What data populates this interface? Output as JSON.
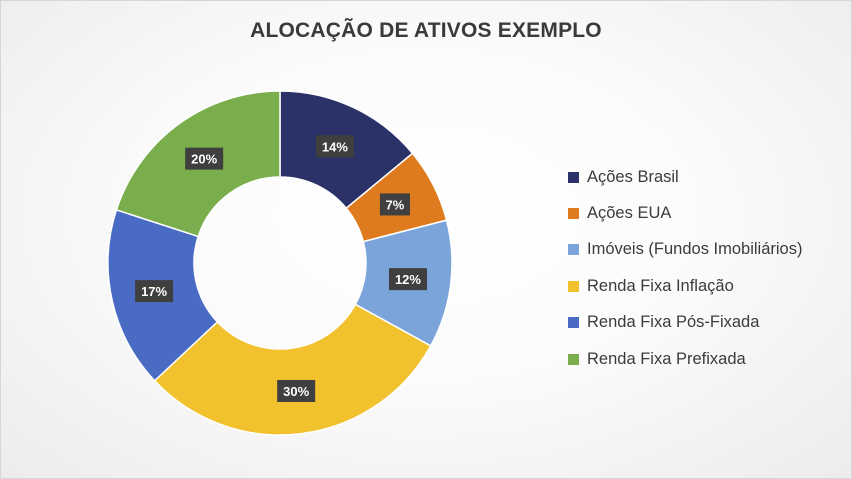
{
  "chart_data": {
    "type": "donut",
    "title": "ALOCAÇÃO DE ATIVOS EXEMPLO",
    "legend_position": "right",
    "slices": [
      {
        "label": "Ações Brasil",
        "value": 14,
        "display": "14%",
        "color": "#2a3267"
      },
      {
        "label": "Ações EUA",
        "value": 7,
        "display": "7%",
        "color": "#dd7b1e"
      },
      {
        "label": "Imóveis (Fundos Imobiliários)",
        "value": 12,
        "display": "12%",
        "color": "#7ba5da"
      },
      {
        "label": "Renda Fixa Inflação",
        "value": 30,
        "display": "30%",
        "color": "#f2c12e"
      },
      {
        "label": "Renda Fixa Pós-Fixada",
        "value": 17,
        "display": "17%",
        "color": "#4a6bc4"
      },
      {
        "label": "Renda Fixa Prefixada",
        "value": 20,
        "display": "20%",
        "color": "#7aae4c"
      }
    ]
  }
}
